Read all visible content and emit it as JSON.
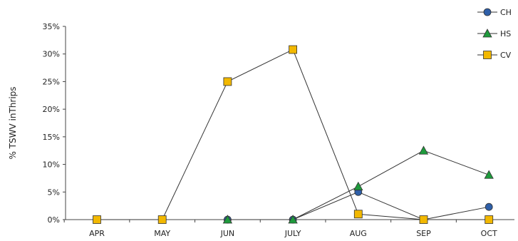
{
  "chart_data": {
    "type": "line",
    "categories": [
      "APR",
      "MAY",
      "JUN",
      "JULY",
      "AUG",
      "SEP",
      "OCT"
    ],
    "ylabel": "% TSWV inThrips",
    "ylim": [
      0,
      35
    ],
    "yticks": [
      "0%",
      "5%",
      "10%",
      "15%",
      "20%",
      "25%",
      "30%",
      "35%"
    ],
    "legend_position": "top-right",
    "series": [
      {
        "name": "CH",
        "marker": "circle",
        "color": "#2E5FA8",
        "values": [
          null,
          null,
          0,
          0,
          5,
          0,
          2.3
        ]
      },
      {
        "name": "HS",
        "marker": "triangle",
        "color": "#1E9A3C",
        "values": [
          null,
          null,
          0,
          0,
          6,
          12.5,
          8.1
        ]
      },
      {
        "name": "CV",
        "marker": "square",
        "color": "#F2B800",
        "values": [
          0,
          0,
          25,
          30.8,
          1,
          0,
          0
        ]
      }
    ]
  }
}
